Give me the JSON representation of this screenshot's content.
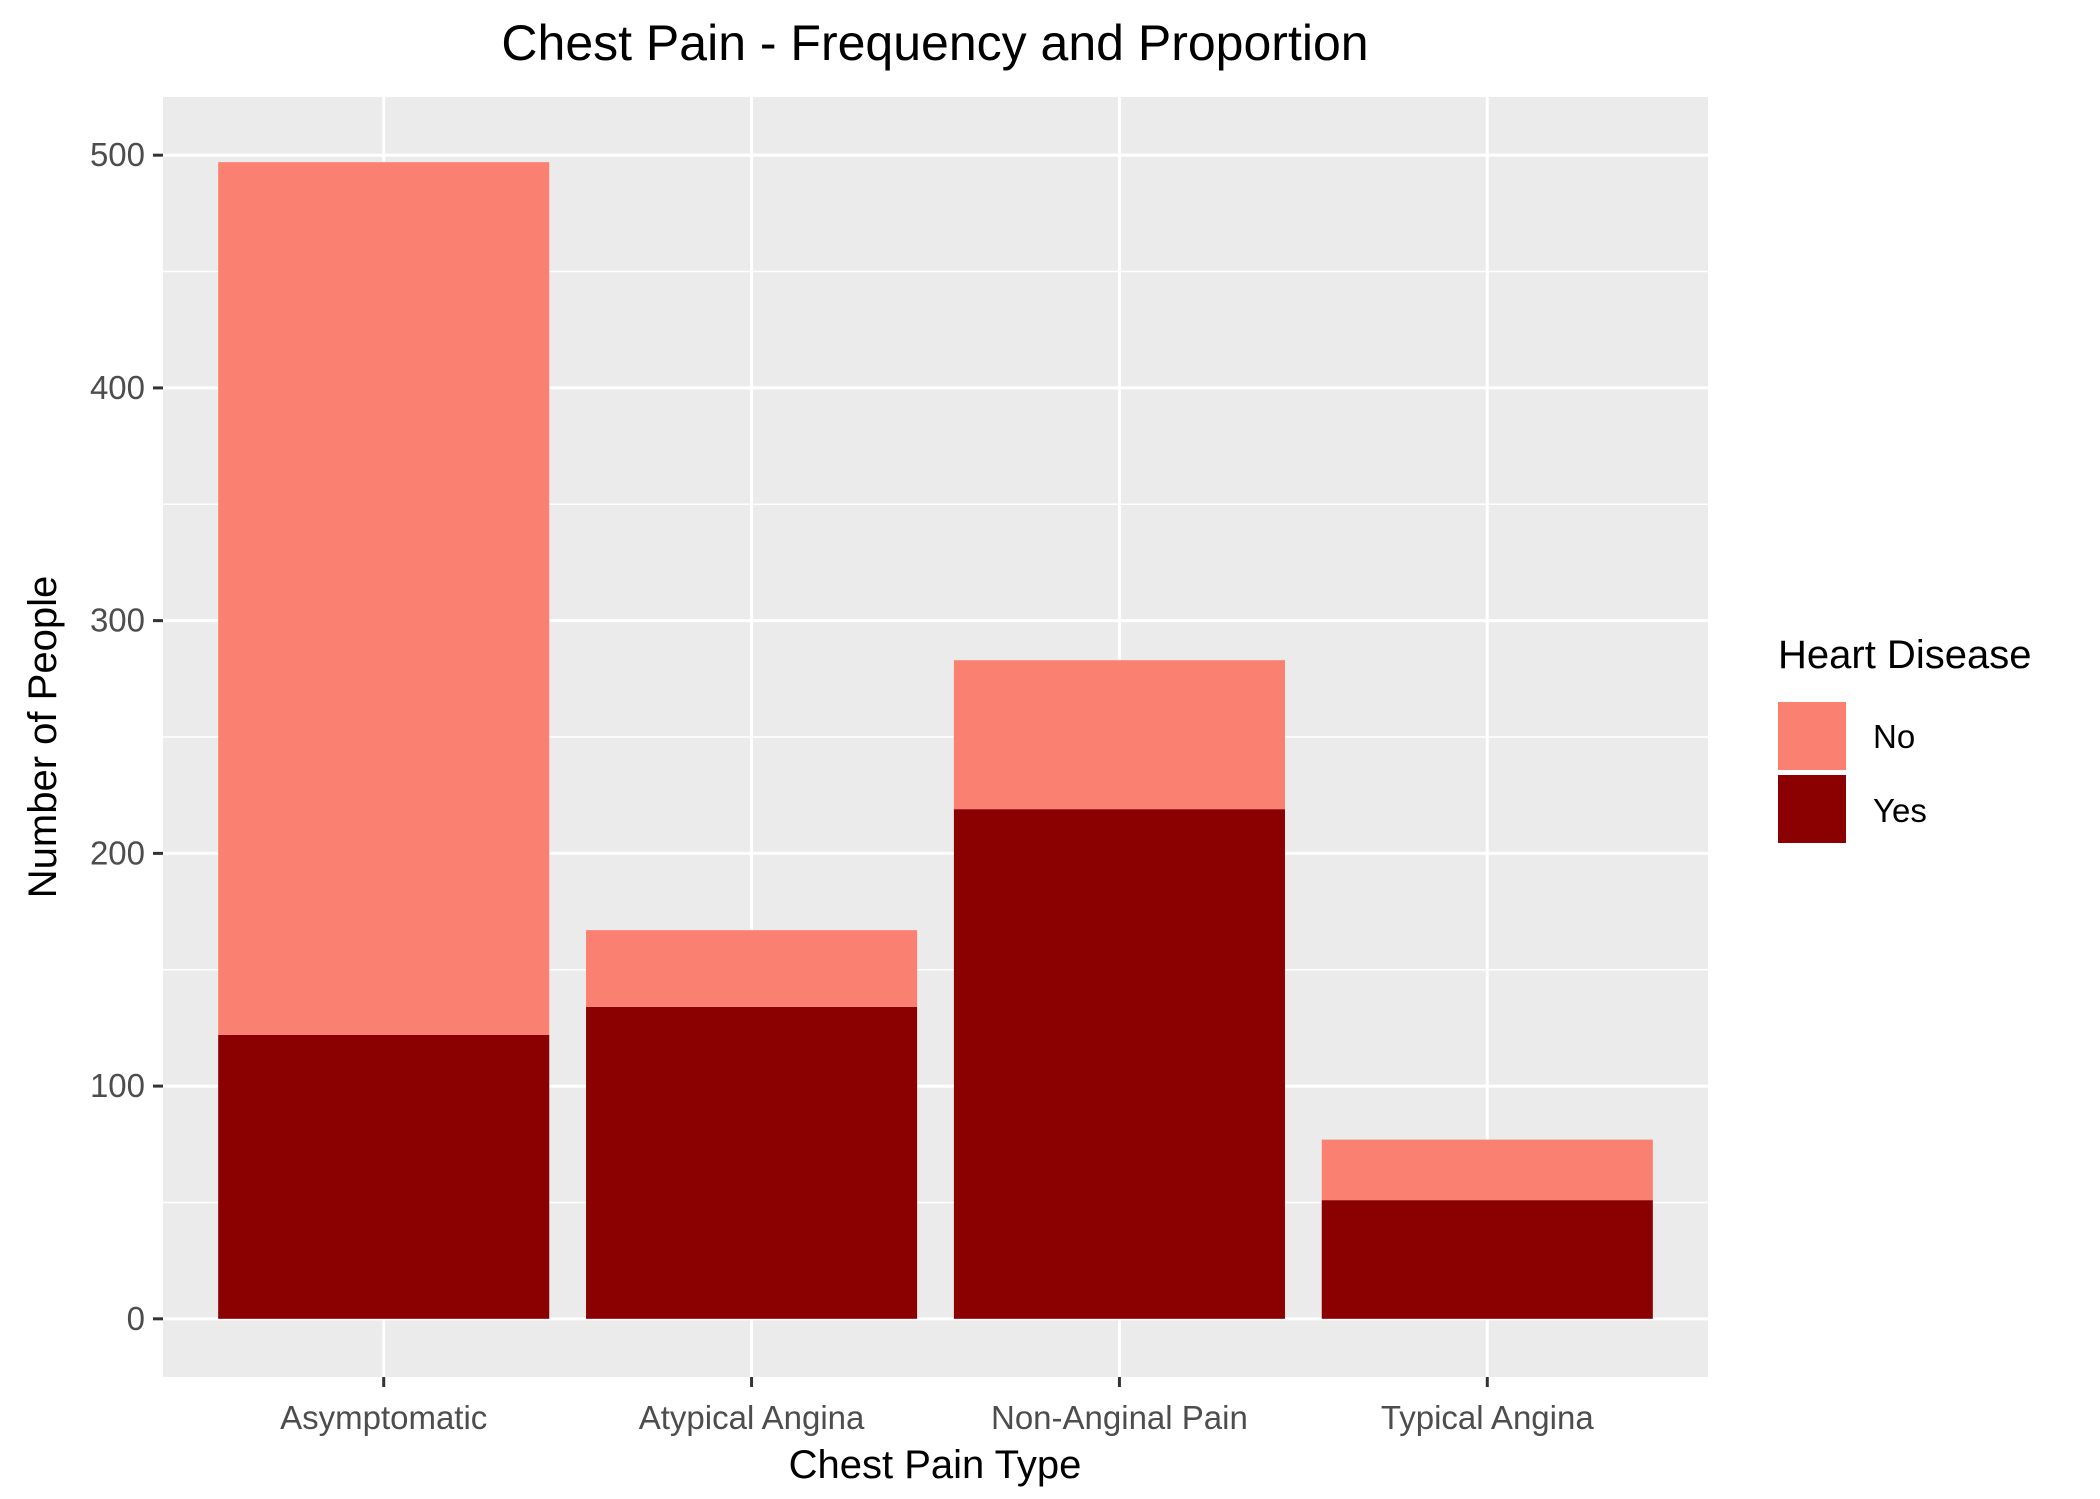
{
  "chart_data": {
    "type": "bar",
    "stacked": true,
    "title": "Chest Pain - Frequency and Proportion",
    "xlabel": "Chest Pain Type",
    "ylabel": "Number of People",
    "categories": [
      "Asymptomatic",
      "Atypical Angina",
      "Non-Anginal Pain",
      "Typical Angina"
    ],
    "series": [
      {
        "name": "Yes",
        "values": [
          122,
          134,
          219,
          51
        ],
        "color": "#8b0000"
      },
      {
        "name": "No",
        "values": [
          375,
          33,
          64,
          26
        ],
        "color": "#fa8072"
      }
    ],
    "ylim": [
      -25,
      525
    ],
    "yticks": [
      0,
      100,
      200,
      300,
      400,
      500
    ],
    "grid": true,
    "panel_background": "#ebebeb",
    "legend": {
      "title": "Heart Disease",
      "position": "right",
      "entries": [
        {
          "label": "No",
          "color": "#fa8072"
        },
        {
          "label": "Yes",
          "color": "#8b0000"
        }
      ]
    }
  }
}
